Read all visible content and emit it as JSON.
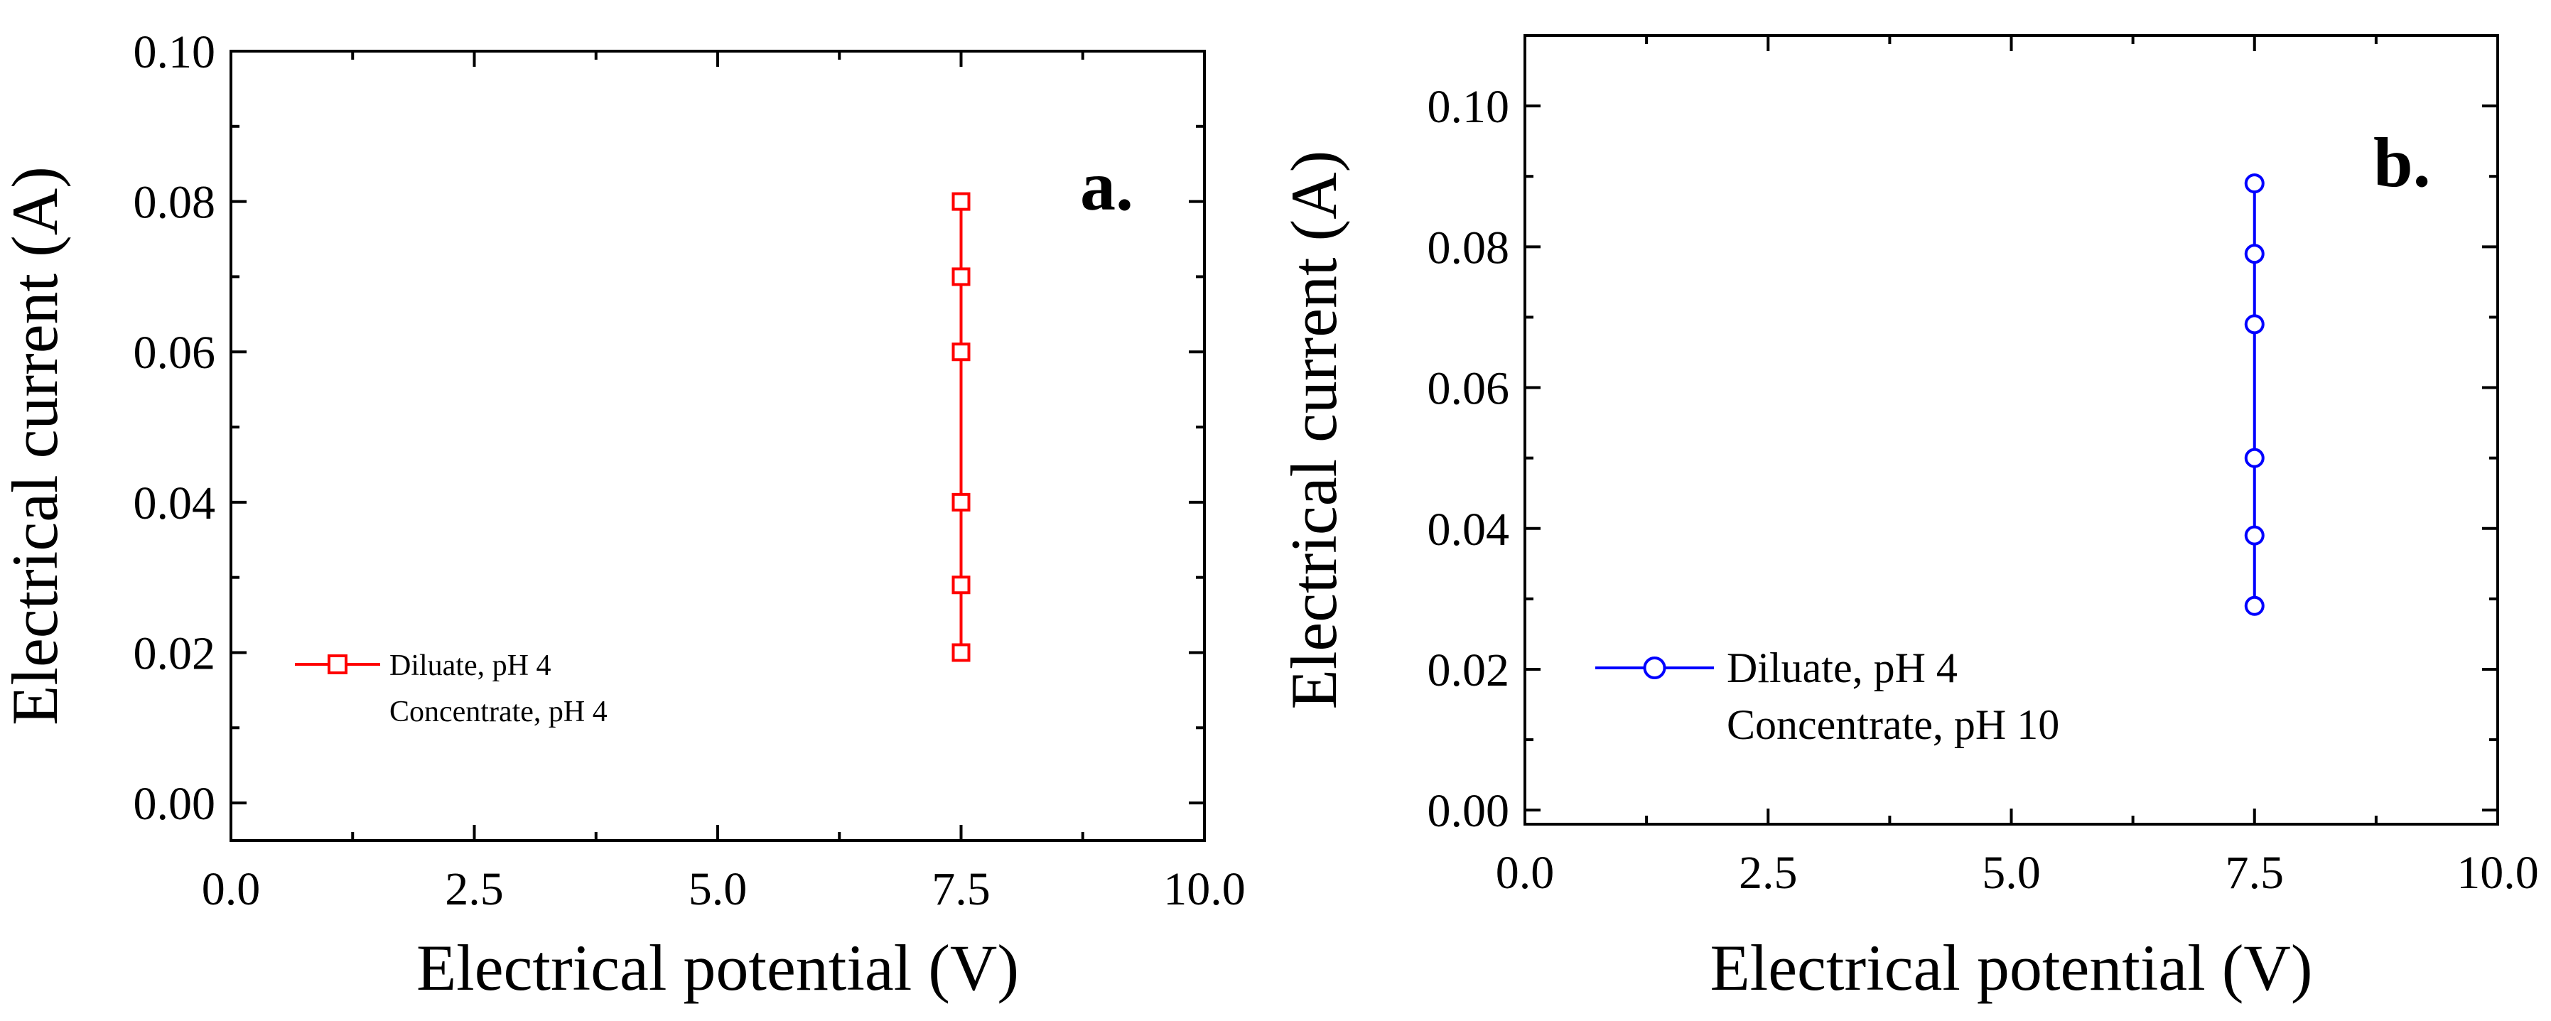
{
  "chart_data": [
    {
      "type": "line",
      "panel_label": "a.",
      "xlabel": "Electrical potential (V)",
      "ylabel": "Electrical current (A)",
      "xlim": [
        0,
        10
      ],
      "ylim": [
        -0.005,
        0.1
      ],
      "xticks": [
        0,
        2.5,
        5,
        7.5,
        10
      ],
      "xtick_labels": [
        "0.0",
        "2.5",
        "5.0",
        "7.5",
        "10.0"
      ],
      "yticks": [
        0,
        0.02,
        0.04,
        0.06,
        0.08,
        0.1
      ],
      "ytick_labels": [
        "0.00",
        "0.02",
        "0.04",
        "0.06",
        "0.08",
        "0.10"
      ],
      "legend_position": "left",
      "series": [
        {
          "name_line1": "Diluate, pH 4",
          "name_line2": "Concentrate, pH 4",
          "color": "#ff0000",
          "marker": "square",
          "x": [
            7.5,
            7.5,
            7.5,
            7.5,
            7.5,
            7.5
          ],
          "y": [
            0.02,
            0.029,
            0.04,
            0.06,
            0.07,
            0.08
          ]
        }
      ]
    },
    {
      "type": "line",
      "panel_label": "b.",
      "xlabel": "Electrical potential (V)",
      "ylabel": "Electrical current (A)",
      "xlim": [
        0,
        10
      ],
      "ylim": [
        -0.002,
        0.11
      ],
      "xticks": [
        0,
        2.5,
        5,
        7.5,
        10
      ],
      "xtick_labels": [
        "0.0",
        "2.5",
        "5.0",
        "7.5",
        "10.0"
      ],
      "yticks": [
        0,
        0.02,
        0.04,
        0.06,
        0.08,
        0.1
      ],
      "ytick_labels": [
        "0.00",
        "0.02",
        "0.04",
        "0.06",
        "0.08",
        "0.10"
      ],
      "legend_position": "left",
      "series": [
        {
          "name_line1": "Diluate, pH 4",
          "name_line2": "Concentrate, pH 10",
          "color": "#0000ff",
          "marker": "circle",
          "x": [
            7.5,
            7.5,
            7.5,
            7.5,
            7.5,
            7.5
          ],
          "y": [
            0.029,
            0.039,
            0.05,
            0.069,
            0.079,
            0.089
          ]
        }
      ]
    }
  ]
}
